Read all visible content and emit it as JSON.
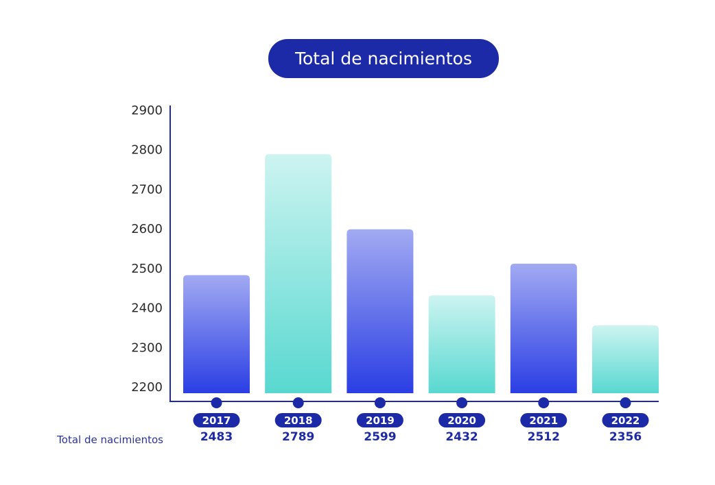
{
  "chart_data": {
    "type": "bar",
    "title": "Total de nacimientos",
    "categories": [
      "2017",
      "2018",
      "2019",
      "2020",
      "2021",
      "2022"
    ],
    "values": [
      2483,
      2789,
      2599,
      2432,
      2512,
      2356
    ],
    "ylim": [
      2200,
      2900
    ],
    "yticks": [
      2200,
      2300,
      2400,
      2500,
      2600,
      2700,
      2800,
      2900
    ],
    "row_label": "Total de nacimientos",
    "grid": false,
    "colors": {
      "accent": "#1c2aa8",
      "blue_bar_top": "#a2aaf2",
      "blue_bar_bottom": "#2a3ee4",
      "teal_bar_top": "#cdf4f1",
      "teal_bar_bottom": "#58d8d0"
    }
  }
}
